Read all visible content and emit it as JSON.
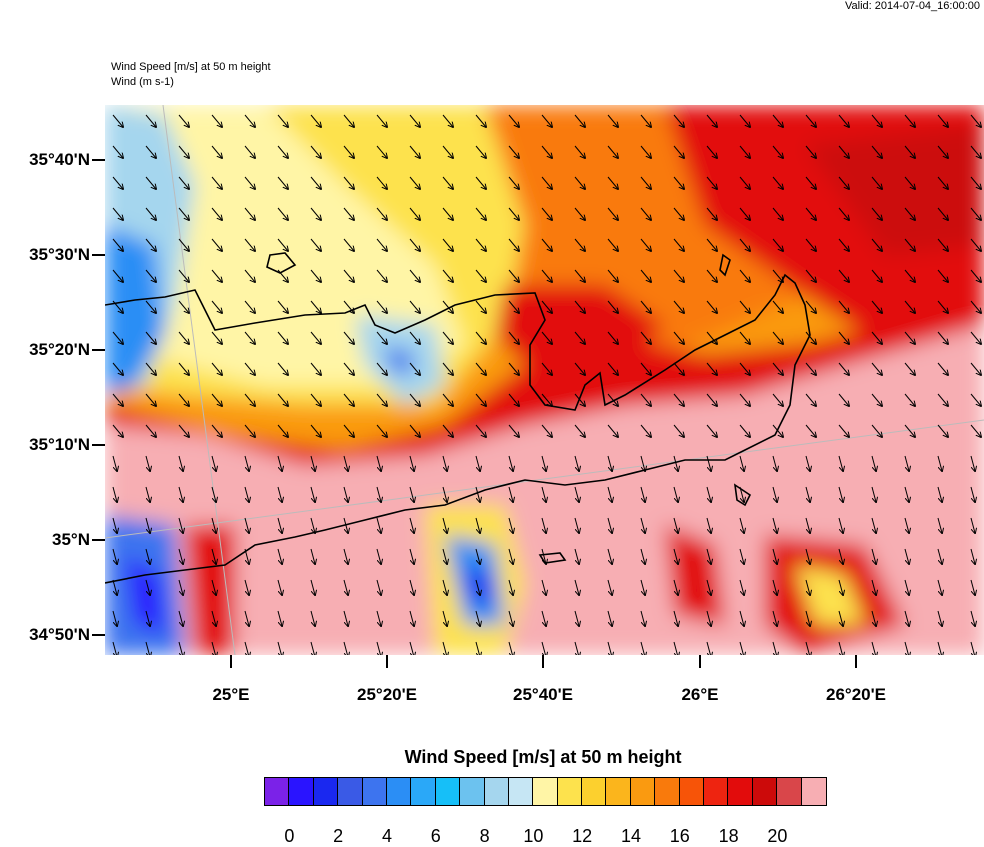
{
  "header": {
    "valid": "Valid: 2014-07-04_16:00:00",
    "title_line1": "Wind Speed [m/s] at 50 m height",
    "title_line2": "Wind   (m s-1)"
  },
  "axes": {
    "lat_labels": [
      "35°40'N",
      "35°30'N",
      "35°20'N",
      "35°10'N",
      "35°N",
      "34°50'N"
    ],
    "lon_labels": [
      "25°E",
      "25°20'E",
      "25°40'E",
      "26°E",
      "26°20'E"
    ]
  },
  "colorbar": {
    "title": "Wind Speed [m/s] at 50 m height",
    "tick_labels": [
      "0",
      "2",
      "4",
      "6",
      "8",
      "10",
      "12",
      "14",
      "16",
      "18",
      "20"
    ],
    "colors": [
      "#7b22e8",
      "#2a14ff",
      "#1a28f0",
      "#3a5ae6",
      "#3d74ef",
      "#2b8ef5",
      "#2aa8f8",
      "#16bff8",
      "#6cc2ef",
      "#a5d6ee",
      "#c6e6f4",
      "#fff5a6",
      "#fde24d",
      "#fcd02e",
      "#fbb51c",
      "#fa9a10",
      "#f97a0c",
      "#f75408",
      "#ee2410",
      "#e20c0c",
      "#cc0a0a",
      "#d9464a",
      "#f7aeb3"
    ]
  },
  "map_colors": {
    "pink": "#f7aeb3",
    "red": "#e20c0c",
    "darkred": "#cc0a0a",
    "orange_red": "#f75408",
    "orange": "#fa9a10",
    "yellow": "#fde24d",
    "pale_yellow": "#fff5a6",
    "light_blue": "#a5d6ee",
    "blue": "#2b8ef5"
  }
}
